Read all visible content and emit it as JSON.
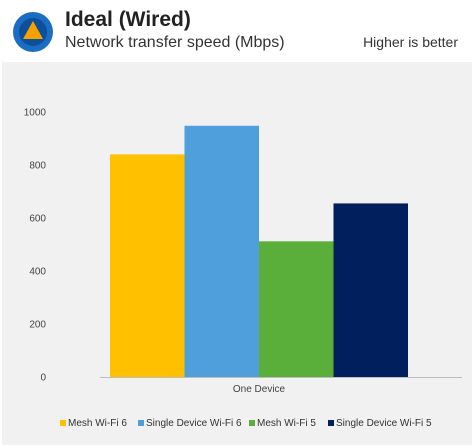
{
  "header": {
    "title": "Ideal (Wired)",
    "subtitle": "Network transfer speed (Mbps)",
    "note": "Higher is better",
    "logo_icon": "techspot-logo-icon"
  },
  "colors": {
    "logo_bg": "#1a6cc4",
    "logo_accent": "#f5a100",
    "panel_bg": "#f1f1f1",
    "axis": "#bdbdbd"
  },
  "chart_data": {
    "type": "bar",
    "title": "",
    "xlabel": "",
    "ylabel": "",
    "categories": [
      "One Device"
    ],
    "ylim": [
      0,
      1000
    ],
    "yticks": [
      0,
      200,
      400,
      600,
      800,
      1000
    ],
    "grid": false,
    "legend_position": "bottom",
    "series": [
      {
        "name": "Mesh Wi-Fi 6",
        "values": [
          840
        ],
        "color": "#ffc000"
      },
      {
        "name": "Single Device Wi-Fi 6",
        "values": [
          948
        ],
        "color": "#4f9fdc"
      },
      {
        "name": "Mesh Wi-Fi 5",
        "values": [
          512
        ],
        "color": "#5aae3a"
      },
      {
        "name": "Single Device Wi-Fi 5",
        "values": [
          655
        ],
        "color": "#001f5c"
      }
    ]
  }
}
